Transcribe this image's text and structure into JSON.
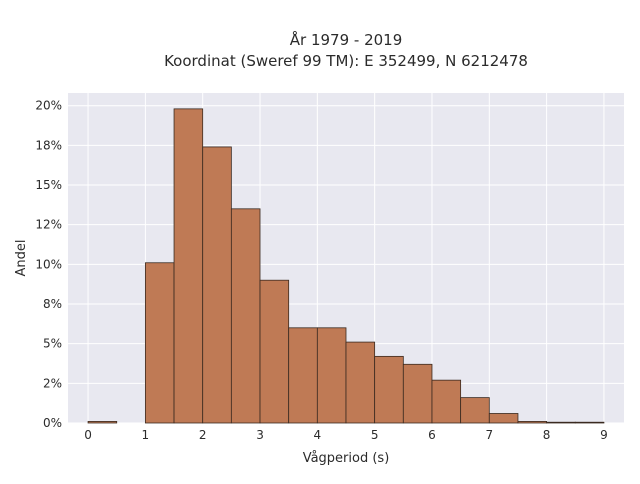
{
  "chart_data": {
    "type": "bar",
    "title": "År 1979 - 2019",
    "subtitle": "Koordinat (Sweref 99 TM): E 352499, N 6212478",
    "xlabel": "Vågperiod (s)",
    "ylabel": "Andel",
    "bin_width": 0.5,
    "bin_starts": [
      0,
      0.5,
      1,
      1.5,
      2,
      2.5,
      3,
      3.5,
      4,
      4.5,
      5,
      5.5,
      6,
      6.5,
      7,
      7.5,
      8,
      8.5
    ],
    "values": [
      0.1,
      0.0,
      10.1,
      19.8,
      17.4,
      13.5,
      9.0,
      6.0,
      6.0,
      5.1,
      4.2,
      3.7,
      2.7,
      1.6,
      0.6,
      0.1,
      0.05,
      0.05
    ],
    "xlim": [
      -0.35,
      9.35
    ],
    "ylim": [
      0,
      20.8
    ],
    "x_ticks": [
      {
        "value": 0,
        "label": "0"
      },
      {
        "value": 1,
        "label": "1"
      },
      {
        "value": 2,
        "label": "2"
      },
      {
        "value": 3,
        "label": "3"
      },
      {
        "value": 4,
        "label": "4"
      },
      {
        "value": 5,
        "label": "5"
      },
      {
        "value": 6,
        "label": "6"
      },
      {
        "value": 7,
        "label": "7"
      },
      {
        "value": 8,
        "label": "8"
      },
      {
        "value": 9,
        "label": "9"
      }
    ],
    "y_ticks": [
      {
        "value": 0,
        "label": "0%"
      },
      {
        "value": 2.5,
        "label": "2%"
      },
      {
        "value": 5,
        "label": "5%"
      },
      {
        "value": 7.5,
        "label": "8%"
      },
      {
        "value": 10,
        "label": "10%"
      },
      {
        "value": 12.5,
        "label": "12%"
      },
      {
        "value": 15,
        "label": "15%"
      },
      {
        "value": 17.5,
        "label": "18%"
      },
      {
        "value": 20,
        "label": "20%"
      }
    ],
    "grid": true,
    "colors": {
      "bar_fill": "#bf7a55",
      "bar_edge": "#3a2a20",
      "plot_bg": "#e8e8f0",
      "grid": "#ffffff"
    }
  }
}
